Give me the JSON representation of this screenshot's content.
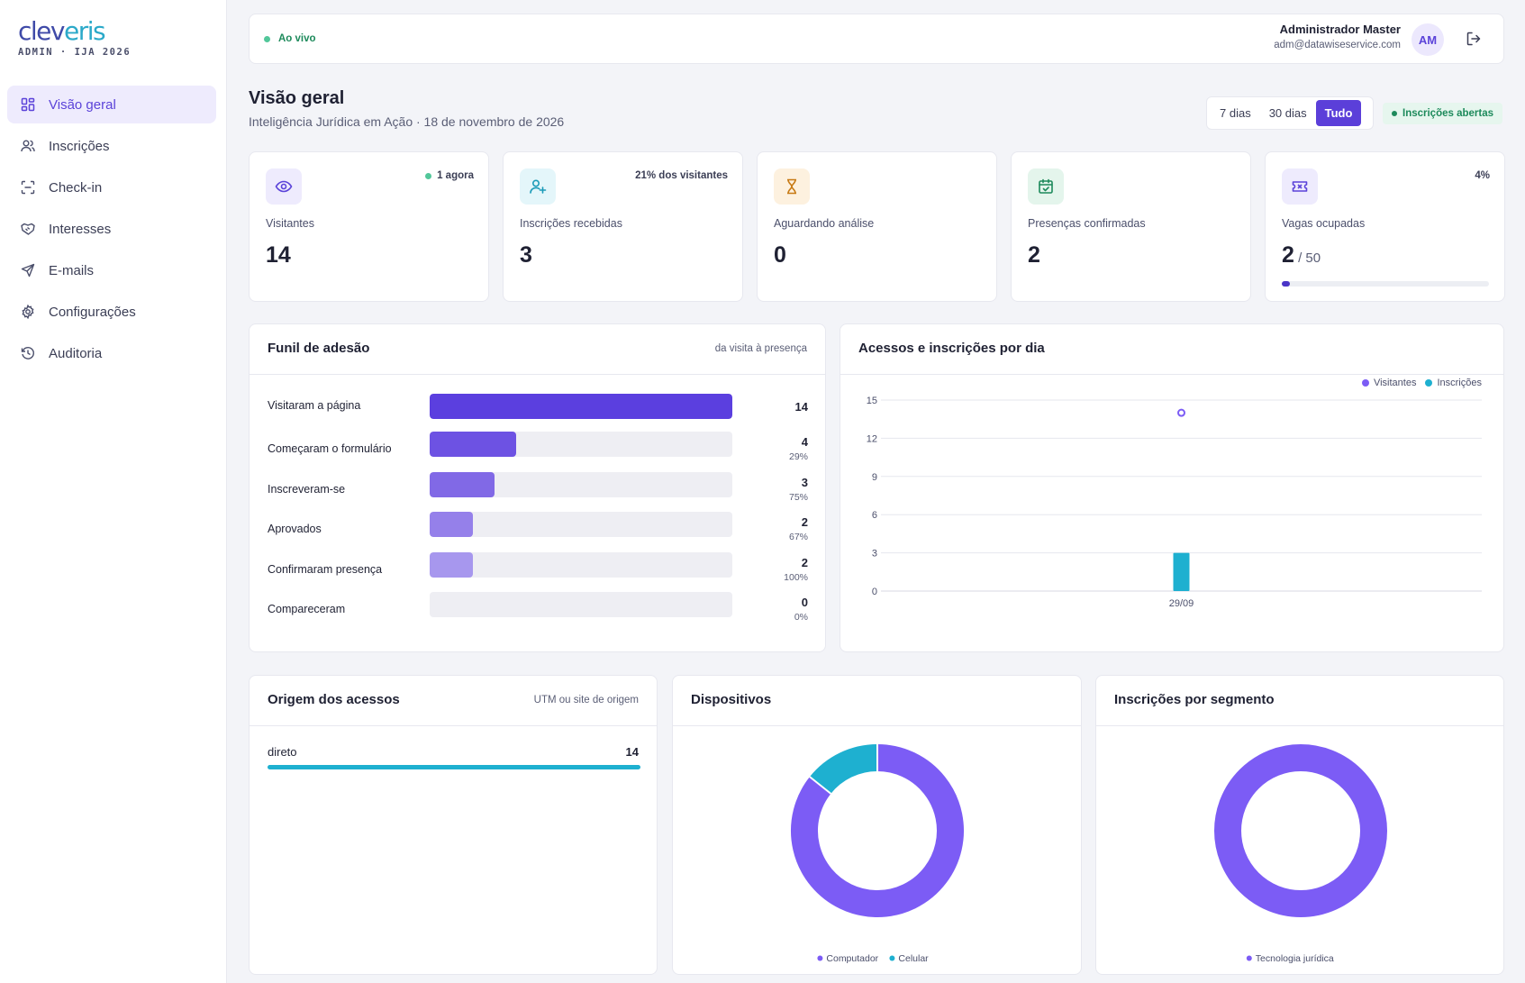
{
  "brand": {
    "logo_main": "clev",
    "logo_accent": "eris",
    "subtitle": "ADMIN · IJA 2026"
  },
  "sidebar": {
    "items": [
      {
        "label": "Visão geral",
        "icon": "grid-icon",
        "active": true
      },
      {
        "label": "Inscrições",
        "icon": "users-icon"
      },
      {
        "label": "Check-in",
        "icon": "scan-icon"
      },
      {
        "label": "Interesses",
        "icon": "handshake-icon"
      },
      {
        "label": "E-mails",
        "icon": "send-icon"
      },
      {
        "label": "Configurações",
        "icon": "gear-icon"
      },
      {
        "label": "Auditoria",
        "icon": "history-icon"
      }
    ]
  },
  "topbar": {
    "live_label": "Ao vivo",
    "user_name": "Administrador Master",
    "user_email": "adm@datawiseservice.com",
    "avatar_initials": "AM"
  },
  "header": {
    "title": "Visão geral",
    "subtitle": "Inteligência Jurídica em Ação · 18 de novembro de 2026",
    "range_options": [
      "7 dias",
      "30 dias",
      "Tudo"
    ],
    "range_selected": "Tudo",
    "status_badge": "Inscrições abertas"
  },
  "stats": [
    {
      "label": "Visitantes",
      "value": "14",
      "corner": "1 agora",
      "icon": "eye-icon",
      "color": "#5b43d9",
      "bg": "#eeebfd"
    },
    {
      "label": "Inscrições recebidas",
      "value": "3",
      "corner": "21% dos visitantes",
      "icon": "user-plus-icon",
      "color": "#1b9bb8",
      "bg": "#e4f6fa"
    },
    {
      "label": "Aguardando análise",
      "value": "0",
      "icon": "hourglass-icon",
      "color": "#c77a14",
      "bg": "#fdf1df"
    },
    {
      "label": "Presenças confirmadas",
      "value": "2",
      "icon": "calendar-check-icon",
      "color": "#1d8a5b",
      "bg": "#e4f5ec"
    },
    {
      "label": "Vagas ocupadas",
      "value": "2",
      "value_suffix": " / 50",
      "corner": "4%",
      "icon": "ticket-icon",
      "color": "#5b43d9",
      "bg": "#eeebfd",
      "progress": 0.04
    }
  ],
  "funnel": {
    "title": "Funil de adesão",
    "note": "da visita à presença",
    "max": 14,
    "rows": [
      {
        "label": "Visitaram a página",
        "value": 14,
        "value_text": "14",
        "pct": "",
        "color": "#5b3fdf"
      },
      {
        "label": "Começaram o formulário",
        "value": 4,
        "value_text": "4",
        "pct": "29%",
        "color": "#6d52e3"
      },
      {
        "label": "Inscreveram-se",
        "value": 3,
        "value_text": "3",
        "pct": "75%",
        "color": "#8169e6"
      },
      {
        "label": "Aprovados",
        "value": 2,
        "value_text": "2",
        "pct": "67%",
        "color": "#9580ea"
      },
      {
        "label": "Confirmaram presença",
        "value": 2,
        "value_text": "2",
        "pct": "100%",
        "color": "#a797ee"
      },
      {
        "label": "Compareceram",
        "value": 0,
        "value_text": "0",
        "pct": "0%",
        "color": "#b9acf1"
      }
    ]
  },
  "daily": {
    "title": "Acessos e inscrições por dia",
    "legend": [
      {
        "name": "Visitantes",
        "color": "#7c5cf5"
      },
      {
        "name": "Inscrições",
        "color": "#1eb0d0"
      }
    ]
  },
  "chart_data": [
    {
      "type": "bar",
      "title": "Acessos e inscrições por dia",
      "categories": [
        "29/09"
      ],
      "series": [
        {
          "name": "Visitantes",
          "values": [
            14
          ],
          "render": "point",
          "color": "#7c5cf5"
        },
        {
          "name": "Inscrições",
          "values": [
            3
          ],
          "render": "bar",
          "color": "#1eb0d0"
        }
      ],
      "ylim": [
        0,
        15
      ],
      "yticks": [
        0,
        3,
        6,
        9,
        12,
        15
      ],
      "grid": true,
      "legend": "top-right"
    },
    {
      "type": "pie",
      "title": "Dispositivos",
      "labels": [
        "Computador",
        "Celular"
      ],
      "values": [
        12,
        2
      ],
      "colors": [
        "#7c5cf5",
        "#1eb0d0"
      ],
      "donut": true
    },
    {
      "type": "pie",
      "title": "Inscrições por segmento",
      "labels": [
        "Tecnologia jurídica"
      ],
      "values": [
        3
      ],
      "colors": [
        "#7c5cf5"
      ],
      "donut": true
    }
  ],
  "origin": {
    "title": "Origem dos acessos",
    "note": "UTM ou site de origem",
    "rows": [
      {
        "label": "direto",
        "value": "14"
      }
    ]
  },
  "devices": {
    "title": "Dispositivos"
  },
  "segments": {
    "title": "Inscrições por segmento"
  }
}
